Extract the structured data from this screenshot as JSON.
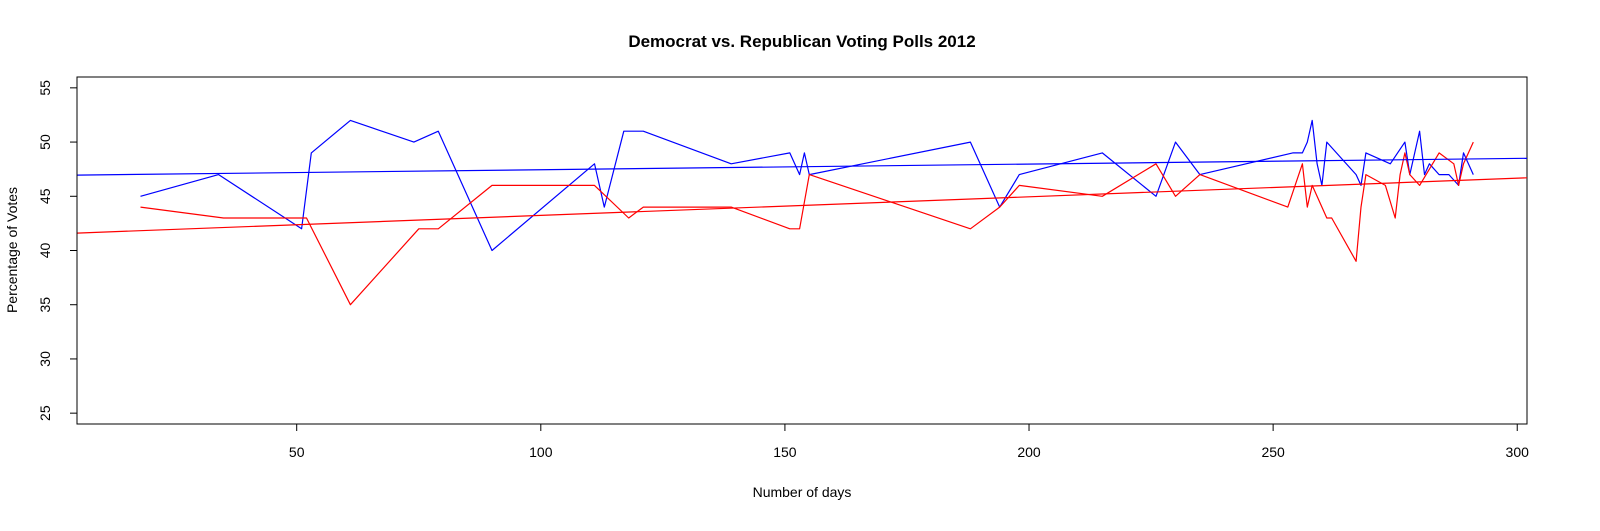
{
  "chart_data": {
    "type": "line",
    "title": "Democrat vs. Republican Voting Polls 2012",
    "xlabel": "Number of days",
    "ylabel": "Percentage of Votes",
    "xlim": [
      5,
      302
    ],
    "ylim": [
      24,
      56
    ],
    "xticks": [
      50,
      100,
      150,
      200,
      250,
      300
    ],
    "yticks": [
      25,
      30,
      35,
      40,
      45,
      50,
      55
    ],
    "grid": false,
    "legend": "none",
    "series": [
      {
        "color": "#0000ff",
        "kind": "polls",
        "x": [
          18,
          34,
          51,
          53,
          61,
          74,
          79,
          90,
          111,
          113,
          117,
          121,
          139,
          151,
          153,
          154,
          155,
          188,
          194,
          198,
          215,
          226,
          230,
          235,
          254,
          256,
          257,
          258,
          259,
          260,
          261,
          267,
          268,
          269,
          274,
          277,
          278,
          280,
          281,
          282,
          284,
          286,
          288,
          289,
          290,
          291
        ],
        "values": [
          45,
          47,
          42,
          49,
          52,
          50,
          51,
          40,
          48,
          44,
          51,
          51,
          48,
          49,
          47,
          49,
          47,
          50,
          44,
          47,
          49,
          45,
          50,
          47,
          49,
          49,
          50,
          52,
          48,
          46,
          50,
          47,
          46,
          49,
          48,
          50,
          47,
          51,
          47,
          48,
          47,
          47,
          46,
          49,
          48,
          47
        ]
      },
      {
        "color": "#ff0000",
        "kind": "polls",
        "x": [
          18,
          35,
          52,
          61,
          75,
          79,
          90,
          111,
          118,
          121,
          139,
          151,
          153,
          155,
          188,
          194,
          198,
          215,
          226,
          230,
          235,
          253,
          256,
          257,
          258,
          261,
          262,
          267,
          268,
          269,
          273,
          275,
          276,
          277,
          278,
          280,
          284,
          287,
          288,
          289,
          291
        ],
        "values": [
          44,
          43,
          43,
          35,
          42,
          42,
          46,
          46,
          43,
          44,
          44,
          42,
          42,
          47,
          42,
          44,
          46,
          45,
          48,
          45,
          47,
          44,
          48,
          44,
          46,
          43,
          43,
          39,
          44,
          47,
          46,
          43,
          47,
          49,
          47,
          46,
          49,
          48,
          46,
          48,
          50
        ]
      },
      {
        "color": "#0000ff",
        "kind": "trend",
        "x": [
          5,
          302
        ],
        "values": [
          46.95,
          48.5
        ]
      },
      {
        "color": "#ff0000",
        "kind": "trend",
        "x": [
          5,
          302
        ],
        "values": [
          41.6,
          46.7
        ]
      }
    ]
  }
}
